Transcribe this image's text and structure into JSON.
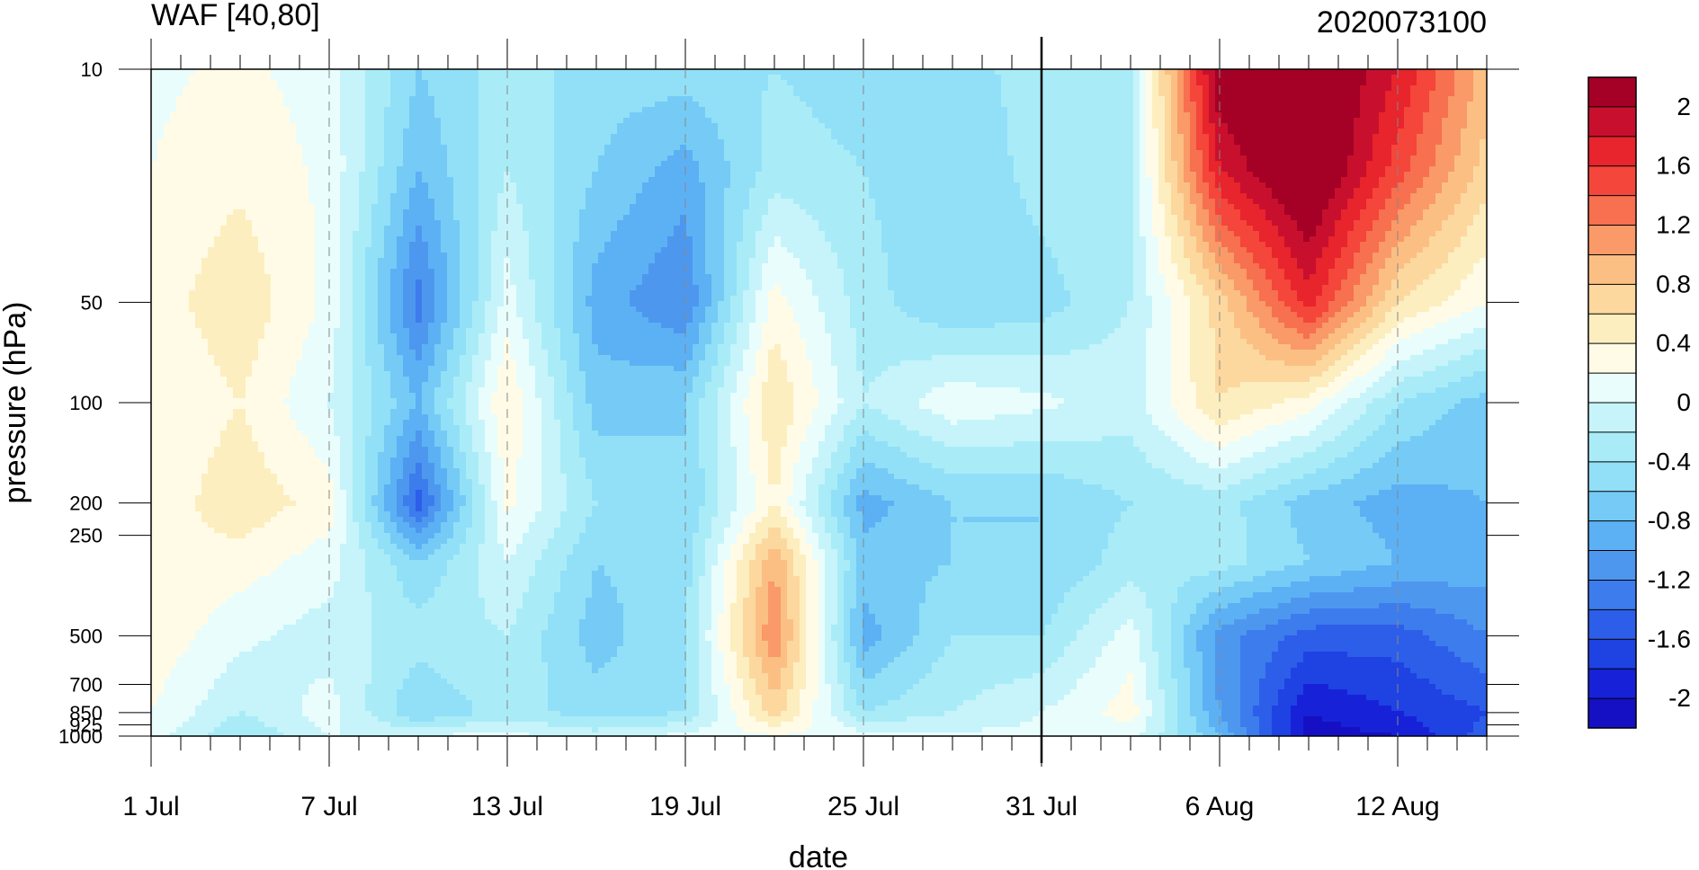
{
  "chart_data": {
    "type": "heatmap",
    "title": "WAF [40,80]",
    "title_right": "2020073100",
    "xlabel": "date",
    "ylabel": "pressure (hPa)",
    "x_ticks": [
      "1 Jul",
      "7 Jul",
      "13 Jul",
      "19 Jul",
      "25 Jul",
      "31 Jul",
      "6 Aug",
      "12 Aug"
    ],
    "x_range": [
      "1 Jul",
      "15 Aug"
    ],
    "marked_date": "31 Jul",
    "y_ticks": [
      "10",
      "50",
      "100",
      "200",
      "250",
      "500",
      "700",
      "850",
      "925",
      "1000"
    ],
    "y_scale": "log",
    "y_range": [
      1000,
      10
    ],
    "colorbar": {
      "labels": [
        "2",
        "1.6",
        "1.2",
        "0.8",
        "0.4",
        "0",
        "-0.4",
        "-0.8",
        "-1.2",
        "-1.6",
        "-2"
      ],
      "levels": [
        -2.2,
        -2,
        -1.8,
        -1.6,
        -1.4,
        -1.2,
        -1,
        -0.8,
        -0.6,
        -0.4,
        -0.2,
        0,
        0.2,
        0.4,
        0.6,
        0.8,
        1,
        1.2,
        1.4,
        1.6,
        1.8,
        2,
        2.2
      ],
      "colors": [
        "#a50026",
        "#c8102e",
        "#e8242c",
        "#f4463a",
        "#f7704f",
        "#f99a68",
        "#fbbf84",
        "#fcd89f",
        "#fdeec0",
        "#fffbe6",
        "#e9fdfd",
        "#c6f4fa",
        "#a9ecf8",
        "#92e0f7",
        "#75cbf5",
        "#5cb1f4",
        "#4e97ef",
        "#3d7cec",
        "#2d5ee9",
        "#1f42e3",
        "#1722d8",
        "#1510c4"
      ]
    },
    "z_times_days": [
      0,
      3,
      6,
      9,
      12,
      15,
      18,
      21,
      24,
      27,
      30,
      33,
      36,
      39,
      42,
      45
    ],
    "z_pressure_levels": [
      10,
      20,
      50,
      100,
      200,
      300,
      500,
      850,
      1000
    ],
    "z": [
      [
        0.15,
        0.25,
        0.1,
        -0.6,
        -0.3,
        -0.5,
        -0.5,
        -0.4,
        -0.5,
        -0.5,
        -0.3,
        -0.2,
        2.2,
        2.4,
        1.8,
        0.9
      ],
      [
        0.2,
        0.35,
        0.15,
        -0.8,
        -0.2,
        -0.6,
        -0.9,
        -0.3,
        -0.4,
        -0.6,
        -0.3,
        -0.2,
        1.8,
        2.4,
        1.5,
        0.7
      ],
      [
        0.3,
        0.55,
        0.15,
        -1.3,
        0.1,
        -0.9,
        -1.2,
        0.3,
        -0.3,
        -0.6,
        -0.5,
        -0.2,
        0.7,
        1.7,
        0.6,
        0.2
      ],
      [
        0.2,
        0.4,
        0.0,
        -0.8,
        0.4,
        -0.7,
        -0.6,
        0.6,
        -0.2,
        0.15,
        0.05,
        -0.1,
        0.6,
        0.3,
        -0.4,
        -0.7
      ],
      [
        0.25,
        0.55,
        0.3,
        -1.5,
        0.25,
        -0.4,
        -0.6,
        0.4,
        -0.9,
        -0.6,
        -0.6,
        -0.4,
        -0.3,
        -0.7,
        -0.9,
        -0.8
      ],
      [
        0.4,
        0.3,
        0.1,
        -0.6,
        0.0,
        -0.6,
        -0.5,
        1.0,
        -0.7,
        -0.6,
        -0.6,
        -0.3,
        -0.3,
        -0.6,
        -0.8,
        -0.9
      ],
      [
        0.35,
        0.05,
        -0.1,
        -0.3,
        -0.2,
        -0.7,
        -0.4,
        1.2,
        -0.9,
        -0.4,
        -0.4,
        0.1,
        -1.1,
        -1.5,
        -1.5,
        -1.2
      ],
      [
        0.2,
        -0.2,
        0.1,
        -0.6,
        -0.3,
        -0.5,
        -0.4,
        0.7,
        -0.4,
        -0.2,
        0.0,
        0.3,
        -1.0,
        -2.0,
        -1.8,
        -1.6
      ],
      [
        0.1,
        -0.4,
        0.0,
        0.0,
        0.05,
        -0.1,
        0.05,
        0.2,
        0.1,
        0.05,
        0.05,
        0.1,
        -0.8,
        -2.1,
        -2.0,
        -1.5
      ]
    ]
  }
}
